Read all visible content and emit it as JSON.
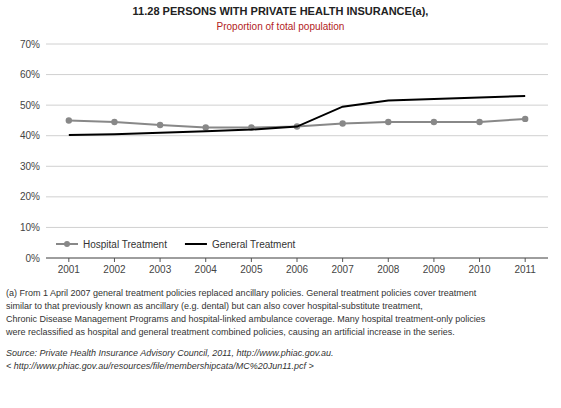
{
  "chart_data": {
    "type": "line",
    "title": "11.28 PERSONS WITH PRIVATE HEALTH INSURANCE(a),",
    "subtitle": "Proportion of total population",
    "x": [
      2001,
      2002,
      2003,
      2004,
      2005,
      2006,
      2007,
      2008,
      2009,
      2010,
      2011
    ],
    "series": [
      {
        "name": "Hospital Treatment",
        "color": "#888888",
        "marker": "circle",
        "values": [
          45.0,
          44.5,
          43.5,
          42.7,
          42.7,
          43.0,
          44.0,
          44.5,
          44.5,
          44.5,
          45.5
        ]
      },
      {
        "name": "General Treatment",
        "color": "#000000",
        "values": [
          40.2,
          40.5,
          41.0,
          41.5,
          42.0,
          43.0,
          49.5,
          51.5,
          52.0,
          52.5,
          53.0
        ]
      }
    ],
    "xlim": [
      2000.5,
      2011.5
    ],
    "xticks": [
      2001,
      2002,
      2003,
      2004,
      2005,
      2006,
      2007,
      2008,
      2009,
      2010,
      2011
    ],
    "ylim": [
      0,
      70
    ],
    "yticks": [
      {
        "value": 0,
        "label": "0%"
      },
      {
        "value": 10,
        "label": "10%"
      },
      {
        "value": 20,
        "label": "20%"
      },
      {
        "value": 30,
        "label": "30%"
      },
      {
        "value": 40,
        "label": "40%"
      },
      {
        "value": 50,
        "label": "50%"
      },
      {
        "value": 60,
        "label": "60%"
      },
      {
        "value": 70,
        "label": "70%"
      }
    ],
    "grid": true,
    "legend": "lower left",
    "annotations": [
      "(a) From 1 April 2007 general treatment policies replaced ancillary policies. General treatment policies cover treatment",
      "similar to that previously known as ancillary (e.g. dental) but can also cover hospital-substitute treatment,",
      "Chronic Disease Management Programs and hospital-linked ambulance coverage. Many hospital treatment-only policies",
      "were reclassified as hospital and general treatment combined policies, causing an artificial increase in the series.",
      "Source: Private Health Insurance Advisory Council, 2011, http://www.phiac.gov.au.",
      "< http://www.phiac.gov.au/resources/file/membershipcata/MC%20Jun11.pcf >"
    ]
  }
}
